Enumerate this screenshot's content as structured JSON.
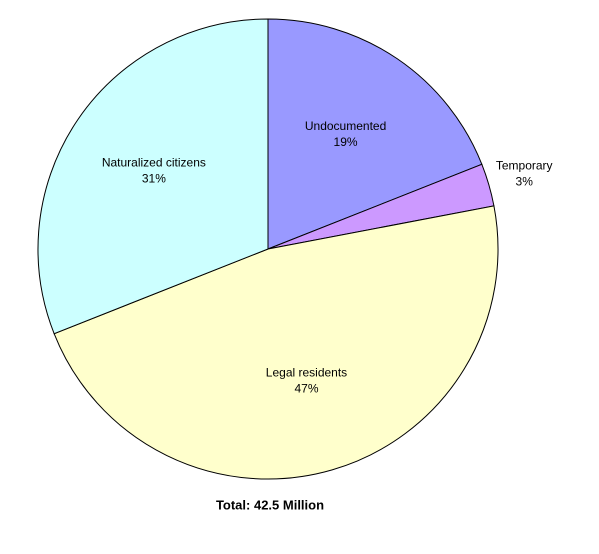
{
  "chart_data": {
    "type": "pie",
    "categories": [
      "Undocumented",
      "Temporary",
      "Legal residents",
      "Naturalized citizens"
    ],
    "values": [
      19,
      3,
      47,
      31
    ],
    "value_labels": [
      "19%",
      "3%",
      "47%",
      "31%"
    ],
    "colors": [
      "#9999ff",
      "#cc99ff",
      "#ffffcc",
      "#ccffff"
    ],
    "caption": "Total: 42.5 Million"
  }
}
